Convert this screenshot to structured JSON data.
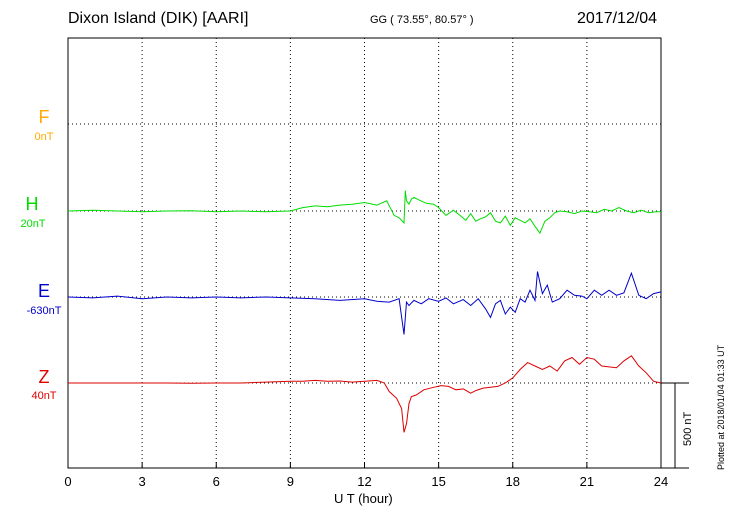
{
  "header": {
    "station": "Dixon Island (DIK)  [AARI]",
    "coords": "GG ( 73.55°,  80.57° )",
    "date": "2017/12/04"
  },
  "side_note": "Plotted at 2018/01/04 01:33 UT",
  "scale_bar_label": "500 nT",
  "chart_data": {
    "type": "line",
    "title": "Dixon Island (DIK)  [AARI]",
    "xlabel": "U T (hour)",
    "xlim": [
      0,
      24
    ],
    "x_ticks": [
      0,
      3,
      6,
      9,
      12,
      15,
      18,
      21,
      24
    ],
    "grid": true,
    "scale_nT": 500,
    "series": [
      {
        "name": "F",
        "baseline_label": "0nT",
        "color": "#ffaa00",
        "x": [],
        "values": []
      },
      {
        "name": "H",
        "baseline_label": "20nT",
        "color": "#00dd00",
        "x": [
          0,
          1,
          2,
          3,
          4,
          5,
          6,
          7,
          8,
          9,
          9.5,
          10,
          10.5,
          11,
          11.5,
          12,
          12.5,
          12.9,
          13.2,
          13.4,
          13.6,
          13.65,
          13.7,
          13.8,
          13.9,
          14.0,
          14.2,
          14.5,
          14.8,
          15.0,
          15.3,
          15.6,
          15.9,
          16.1,
          16.3,
          16.5,
          16.7,
          16.9,
          17.1,
          17.3,
          17.5,
          17.7,
          17.9,
          18.1,
          18.3,
          18.5,
          18.7,
          18.9,
          19.1,
          19.3,
          19.5,
          19.7,
          19.9,
          20.2,
          20.5,
          20.8,
          21.1,
          21.4,
          21.7,
          22.0,
          22.3,
          22.6,
          22.9,
          23.2,
          23.5,
          23.8,
          24
        ],
        "values": [
          0,
          5,
          0,
          -5,
          0,
          2,
          -5,
          0,
          -5,
          0,
          20,
          30,
          25,
          35,
          40,
          50,
          35,
          60,
          -25,
          -40,
          -70,
          120,
          60,
          40,
          70,
          80,
          65,
          45,
          40,
          20,
          -25,
          5,
          -30,
          -55,
          -15,
          -60,
          -45,
          -35,
          -10,
          -60,
          -70,
          -30,
          -85,
          -40,
          -55,
          -70,
          -45,
          -90,
          -130,
          -60,
          -40,
          -10,
          0,
          -5,
          -15,
          0,
          -5,
          -10,
          10,
          0,
          20,
          0,
          -10,
          5,
          -10,
          -5,
          -5
        ]
      },
      {
        "name": "E",
        "baseline_label": "-630nT",
        "color": "#0000cc",
        "x": [
          0,
          1,
          2,
          3,
          4,
          5,
          6,
          7,
          8,
          9,
          10,
          11,
          12,
          12.5,
          13,
          13.4,
          13.6,
          13.7,
          13.8,
          14.0,
          14.3,
          14.6,
          15.0,
          15.3,
          15.6,
          16.0,
          16.3,
          16.6,
          16.9,
          17.1,
          17.3,
          17.5,
          17.7,
          17.9,
          18.1,
          18.3,
          18.5,
          18.7,
          18.9,
          19.0,
          19.2,
          19.4,
          19.6,
          19.9,
          20.2,
          20.5,
          20.8,
          21.0,
          21.3,
          21.6,
          21.9,
          22.2,
          22.5,
          22.8,
          23.1,
          23.4,
          23.7,
          24
        ],
        "values": [
          0,
          -5,
          5,
          -10,
          0,
          -5,
          0,
          -5,
          0,
          -5,
          -10,
          -20,
          -10,
          -25,
          -30,
          -10,
          -220,
          -30,
          -50,
          -20,
          -40,
          -10,
          -25,
          -5,
          -40,
          -15,
          -50,
          -10,
          -70,
          -120,
          -40,
          -20,
          -100,
          -60,
          -90,
          -10,
          -30,
          40,
          -20,
          150,
          20,
          70,
          -30,
          -10,
          40,
          10,
          5,
          -10,
          40,
          10,
          40,
          10,
          25,
          140,
          10,
          -10,
          20,
          30
        ]
      },
      {
        "name": "Z",
        "baseline_label": "40nT",
        "color": "#dd0000",
        "x": [
          0,
          1,
          2,
          3,
          4,
          5,
          6,
          7,
          8,
          9,
          9.5,
          10,
          10.5,
          11,
          11.5,
          12,
          12.5,
          12.8,
          13.0,
          13.3,
          13.5,
          13.6,
          13.7,
          13.8,
          13.9,
          14.1,
          14.4,
          14.8,
          15.1,
          15.4,
          15.7,
          16.0,
          16.3,
          16.5,
          16.8,
          17.1,
          17.4,
          17.7,
          18.0,
          18.3,
          18.6,
          18.9,
          19.2,
          19.5,
          19.8,
          20.1,
          20.4,
          20.7,
          21.0,
          21.3,
          21.6,
          21.9,
          22.2,
          22.5,
          22.8,
          23.1,
          23.4,
          23.7,
          24
        ],
        "values": [
          0,
          0,
          0,
          0,
          0,
          -2,
          0,
          0,
          5,
          10,
          10,
          15,
          10,
          12,
          5,
          10,
          15,
          0,
          -50,
          -90,
          -150,
          -290,
          -240,
          -120,
          -80,
          -70,
          -40,
          -25,
          -15,
          -20,
          -40,
          -35,
          -60,
          -45,
          -30,
          -25,
          -20,
          0,
          30,
          80,
          120,
          100,
          80,
          100,
          70,
          130,
          150,
          110,
          150,
          140,
          100,
          95,
          90,
          130,
          160,
          100,
          60,
          10,
          0
        ]
      }
    ]
  }
}
